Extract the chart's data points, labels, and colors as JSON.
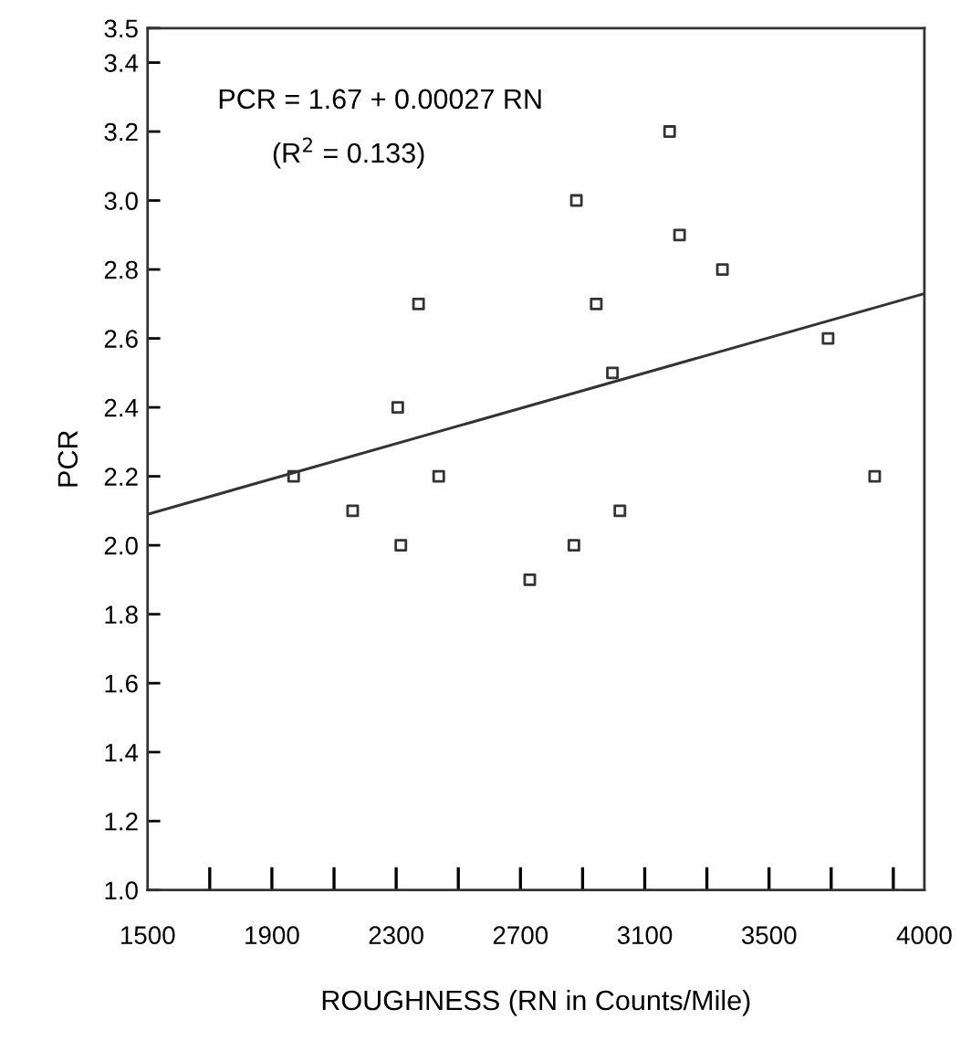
{
  "chart_data": {
    "type": "scatter",
    "xlabel": "ROUGHNESS (RN in Counts/Mile)",
    "ylabel": "PCR",
    "annotations": [
      "PCR = 1.67 + 0.00027 RN",
      "(R$^{2}$ = 0.133)"
    ],
    "series": [
      {
        "color": "#333333",
        "marker": "square",
        "x": [
          1970,
          2160,
          2315,
          2437,
          2730,
          2872,
          3020,
          3840,
          2305,
          2372,
          2880,
          2944,
          2996,
          3180,
          3212,
          3350,
          3690
        ],
        "values": [
          2.2,
          2.1,
          2.0,
          2.2,
          1.9,
          2.0,
          2.1,
          2.2,
          2.4,
          2.7,
          3.0,
          2.7,
          2.5,
          3.2,
          2.9,
          2.8,
          2.6
        ]
      },
      {
        "type": "line",
        "color": "#333333",
        "marker": "none",
        "line_style": "solid",
        "x": [
          1500,
          4000
        ],
        "values": [
          2.09,
          2.73
        ]
      }
    ],
    "xlim": [
      1500,
      4000
    ],
    "xticks": [
      1500,
      {
        "value": 1700,
        "label": null
      },
      1900,
      {
        "value": 2100,
        "label": null
      },
      2300,
      {
        "value": 2500,
        "label": null
      },
      2700,
      {
        "value": 2900,
        "label": null
      },
      3100,
      {
        "value": 3300,
        "label": null
      },
      3500,
      {
        "value": 3700,
        "label": null
      },
      {
        "value": 3900,
        "label": null
      },
      4000
    ],
    "ylim": [
      1.0,
      3.5
    ],
    "yticks": [
      {
        "value": 1,
        "label": "1.0"
      },
      1.2,
      1.4,
      1.6,
      1.8,
      {
        "value": 2,
        "label": "2.0"
      },
      2.2,
      2.4,
      2.6,
      2.8,
      {
        "value": 3,
        "label": "3.0"
      },
      3.2,
      3.4,
      3.5
    ],
    "grid": false
  }
}
